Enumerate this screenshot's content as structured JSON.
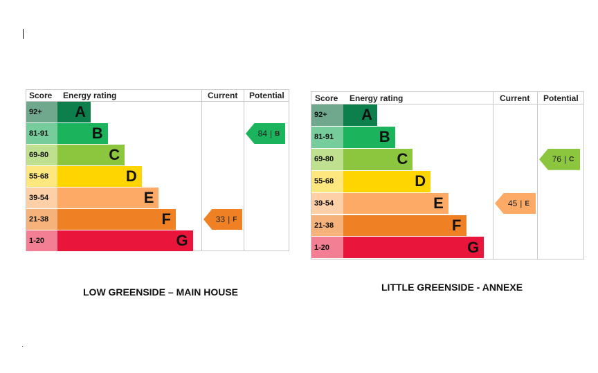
{
  "colors": {
    "A": {
      "bar": "#0c7f4c",
      "score": "#6fa88d"
    },
    "B": {
      "bar": "#1bb35b",
      "score": "#76cd9b"
    },
    "C": {
      "bar": "#8cc63f",
      "score": "#bfe08f"
    },
    "D": {
      "bar": "#ffd500",
      "score": "#ffe780"
    },
    "E": {
      "bar": "#fcaa65",
      "score": "#fdd0a8"
    },
    "F": {
      "bar": "#ef8023",
      "score": "#f5b27a"
    },
    "G": {
      "bar": "#e9153b",
      "score": "#f27f93"
    }
  },
  "charts": [
    {
      "caption": "LOW GREENSIDE – MAIN HOUSE",
      "headers": {
        "score": "Score",
        "rating": "Energy rating",
        "current": "Current",
        "potential": "Potential"
      },
      "bands": [
        {
          "range": "92+",
          "letter": "A"
        },
        {
          "range": "81-91",
          "letter": "B"
        },
        {
          "range": "69-80",
          "letter": "C"
        },
        {
          "range": "55-68",
          "letter": "D"
        },
        {
          "range": "39-54",
          "letter": "E"
        },
        {
          "range": "21-38",
          "letter": "F"
        },
        {
          "range": "1-20",
          "letter": "G"
        }
      ],
      "current": {
        "value": "33",
        "sep": "|",
        "letter": "F"
      },
      "potential": {
        "value": "84",
        "sep": "|",
        "letter": "B"
      }
    },
    {
      "caption": "LITTLE GREENSIDE - ANNEXE",
      "headers": {
        "score": "Score",
        "rating": "Energy rating",
        "current": "Current",
        "potential": "Potential"
      },
      "bands": [
        {
          "range": "92+",
          "letter": "A"
        },
        {
          "range": "81-91",
          "letter": "B"
        },
        {
          "range": "69-80",
          "letter": "C"
        },
        {
          "range": "55-68",
          "letter": "D"
        },
        {
          "range": "39-54",
          "letter": "E"
        },
        {
          "range": "21-38",
          "letter": "F"
        },
        {
          "range": "1-20",
          "letter": "G"
        }
      ],
      "current": {
        "value": "45",
        "sep": "|",
        "letter": "E"
      },
      "potential": {
        "value": "76",
        "sep": "|",
        "letter": "C"
      }
    }
  ]
}
